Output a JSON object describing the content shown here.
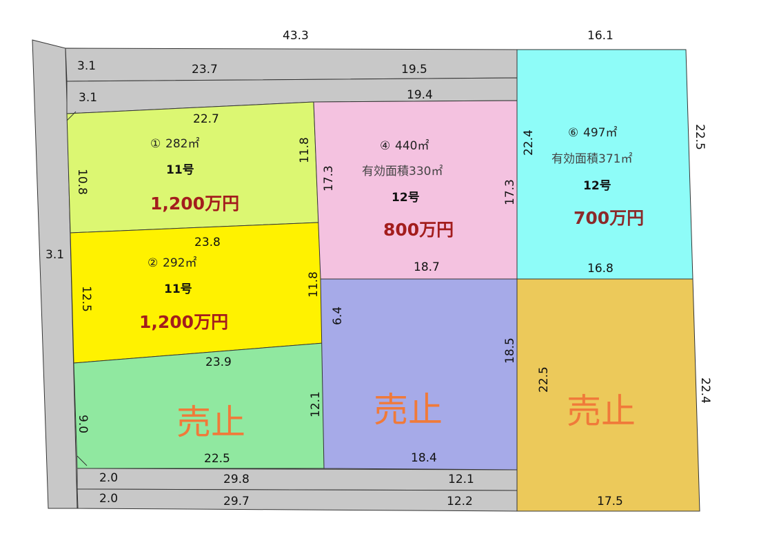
{
  "colors": {
    "road": "#c8c8c8",
    "lot1": "#dcf772",
    "lot2": "#fff200",
    "lot3": "#90e8a0",
    "lot4": "#f4c2e0",
    "lot5": "#a6aae8",
    "lot6": "#8efcf8",
    "lot7": "#ecc95a",
    "price": "#a31d1d",
    "sold": "#f07a3a"
  },
  "dimensions": {
    "top_total": "43.3",
    "top_right": "16.1",
    "road1_width": "3.1",
    "road1_a": "23.7",
    "road1_b": "19.5",
    "road2_width": "3.1",
    "road2_b": "19.4",
    "left_road_width": "3.1",
    "lot1_top": "22.7",
    "lot1_left": "10.8",
    "lot1_right": "11.8",
    "lot2_top": "23.8",
    "lot2_left": "12.5",
    "lot2_right": "11.8",
    "lot3_top": "23.9",
    "lot3_left": "9.0",
    "lot3_right": "12.1",
    "lot3_bottom": "22.5",
    "lot4_left": "17.3",
    "lot4_right": "17.3",
    "lot4_bottom": "18.7",
    "lot5_left": "6.4",
    "lot5_right": "18.5",
    "lot5_bottom": "18.4",
    "lot6_left": "22.4",
    "lot6_right": "22.5",
    "lot6_bottom": "16.8",
    "lot7_left": "22.5",
    "lot7_right": "22.4",
    "lot7_bottom": "17.5",
    "broad1_width": "2.0",
    "broad1_a": "29.8",
    "broad1_b": "12.1",
    "broad2_width": "2.0",
    "broad2_a": "29.7",
    "broad2_b": "12.2"
  },
  "lots": [
    {
      "number": "①",
      "area": "282㎡",
      "route": "11号",
      "price": "1,200万円"
    },
    {
      "number": "②",
      "area": "292㎡",
      "route": "11号",
      "price": "1,200万円"
    },
    {
      "status": "売止"
    },
    {
      "number": "④",
      "area": "440㎡",
      "effective": "有効面積330㎡",
      "route": "12号",
      "price": "800万円"
    },
    {
      "status": "売止"
    },
    {
      "number": "⑥",
      "area": "497㎡",
      "effective": "有効面積371㎡",
      "route": "12号",
      "price": "700万円"
    },
    {
      "status": "売止"
    }
  ]
}
